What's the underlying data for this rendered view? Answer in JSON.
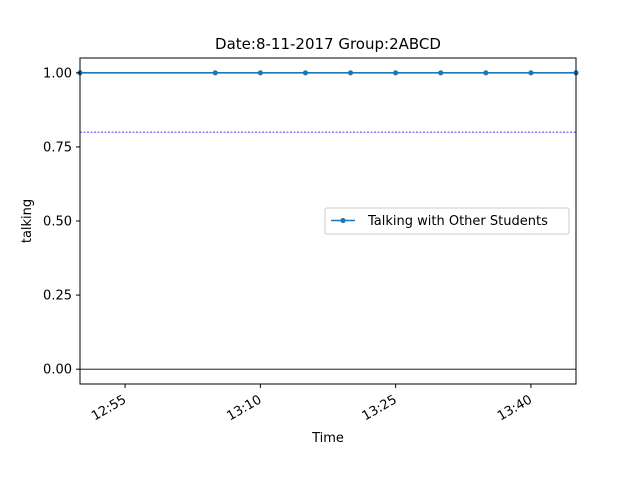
{
  "chart_data": {
    "type": "line",
    "title": "Date:8-11-2017  Group:2ABCD",
    "xlabel": "Time",
    "ylabel": "talking",
    "x_tick_labels": [
      "12:55",
      "13:10",
      "13:25",
      "13:40"
    ],
    "x_tick_values": [
      "12:55",
      "13:10",
      "13:25",
      "13:40"
    ],
    "xlim": [
      "12:50",
      "13:45"
    ],
    "ylim": [
      -0.05,
      1.05
    ],
    "y_ticks": [
      0.0,
      0.25,
      0.5,
      0.75,
      1.0
    ],
    "y_tick_labels": [
      "0.00",
      "0.25",
      "0.50",
      "0.75",
      "1.00"
    ],
    "series": [
      {
        "name": "Talking with Other Students",
        "color": "#1f77b4",
        "x": [
          "12:50",
          "13:05",
          "13:10",
          "13:15",
          "13:20",
          "13:25",
          "13:30",
          "13:35",
          "13:40",
          "13:45"
        ],
        "y": [
          1,
          1,
          1,
          1,
          1,
          1,
          1,
          1,
          1,
          1
        ]
      }
    ],
    "reference_lines": [
      {
        "y": 0.8,
        "color": "#0000ff",
        "style": "dashed"
      },
      {
        "y": 0.0,
        "color": "#000000",
        "style": "solid"
      }
    ],
    "legend_position": "center-right",
    "grid": false
  }
}
